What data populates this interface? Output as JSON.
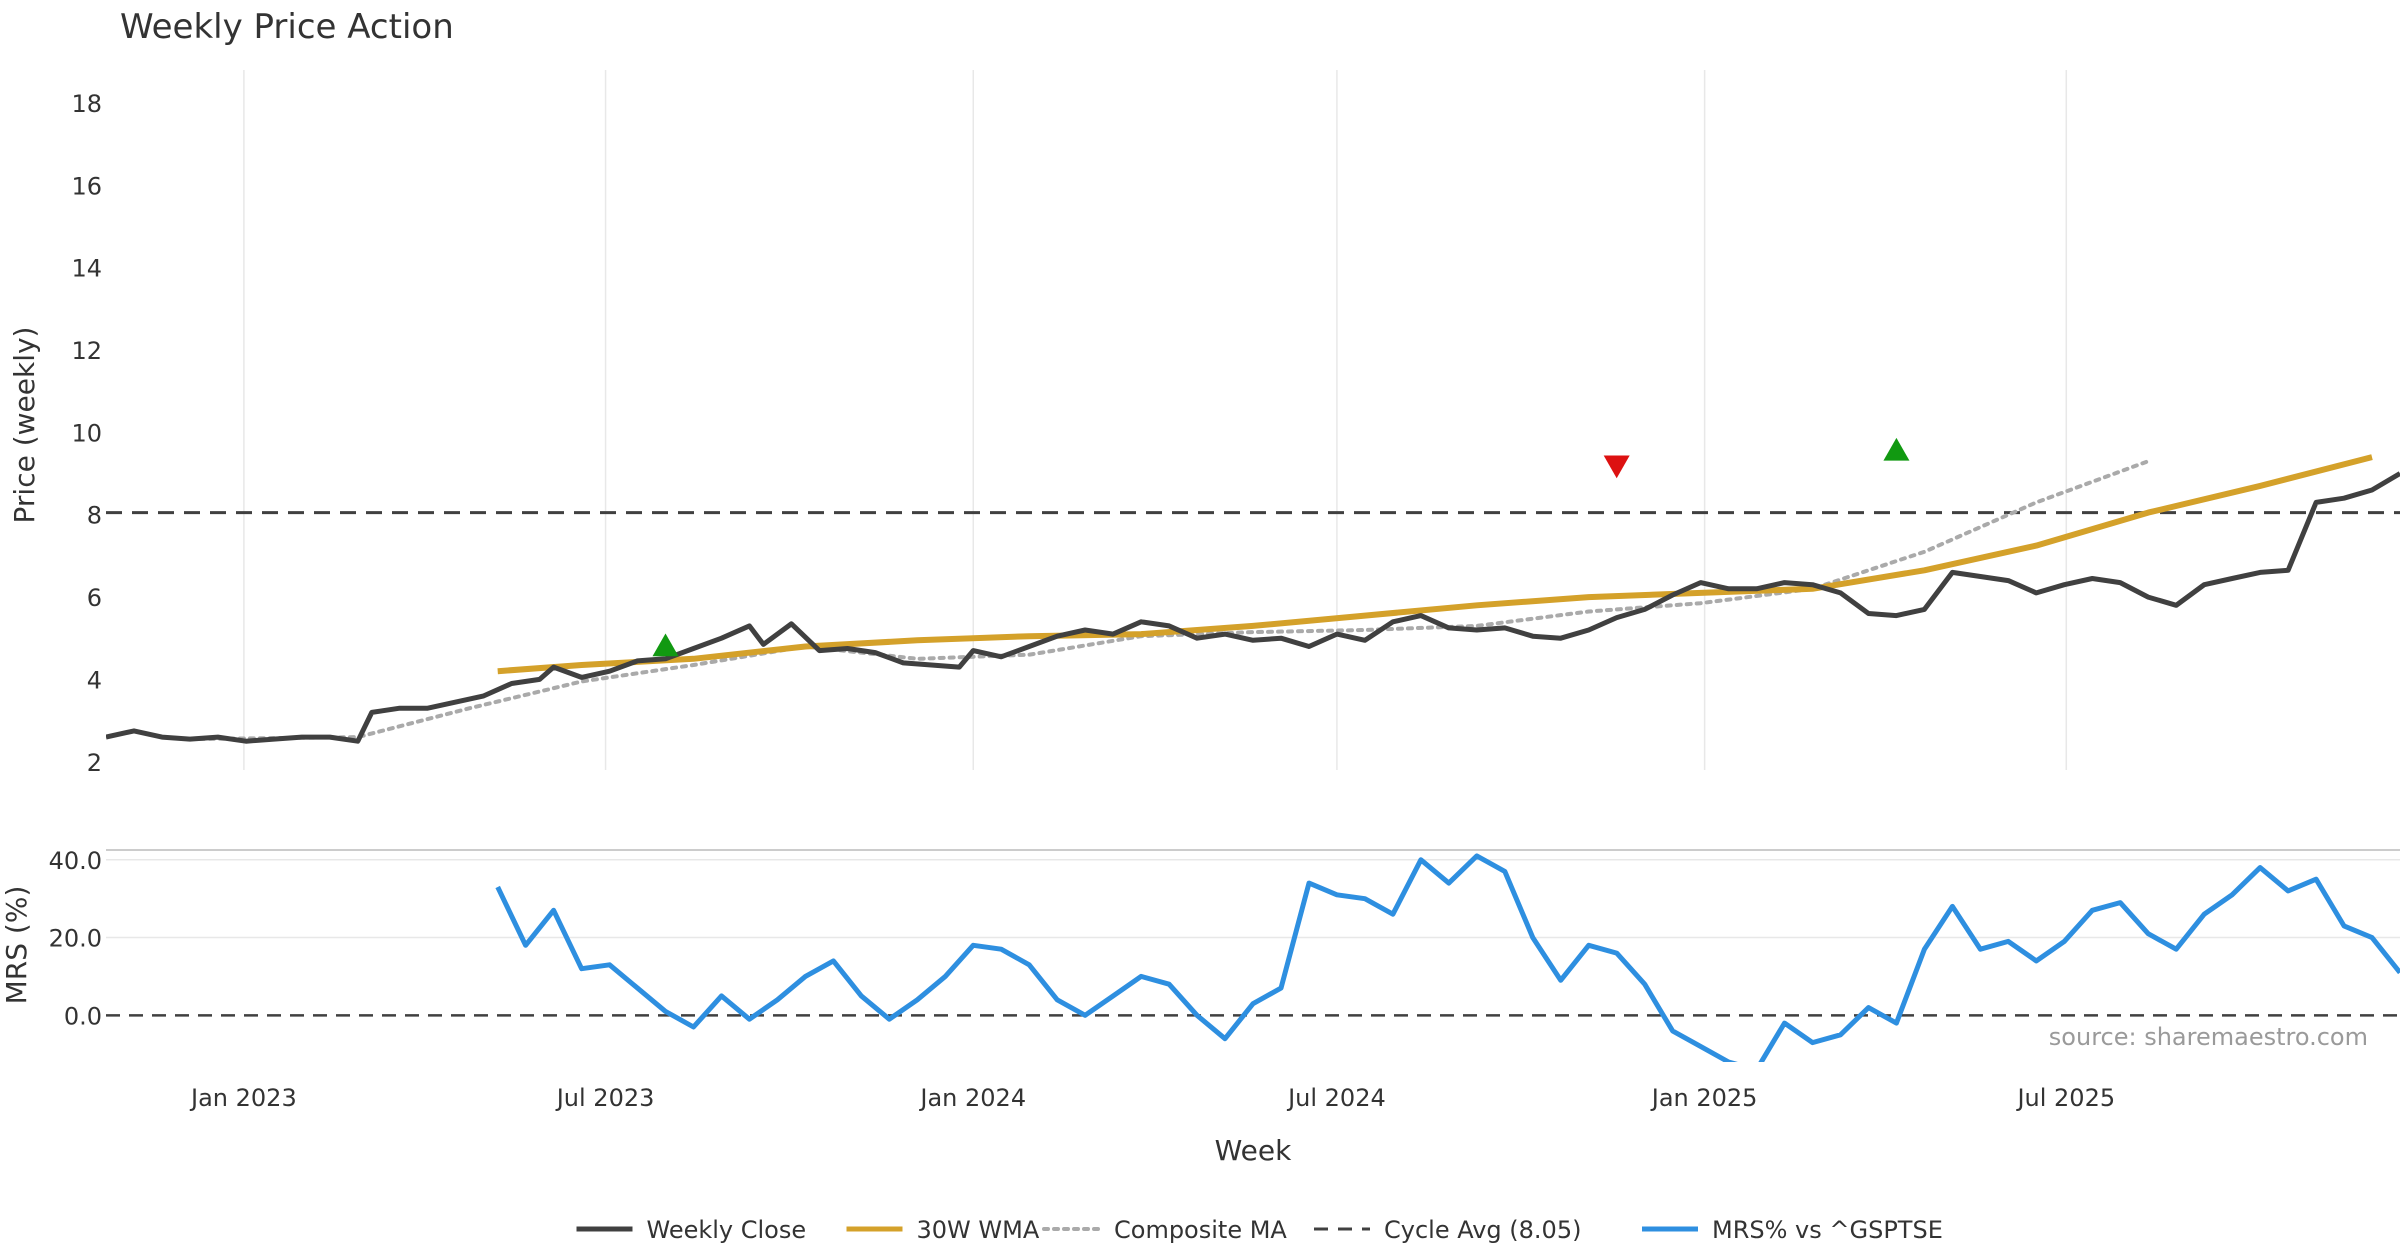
{
  "colors": {
    "close": "#404040",
    "wma": "#d4a12a",
    "composite": "#aaaaaa",
    "cycle": "#404040",
    "mrs": "#2e8fe0",
    "buy": "#119911",
    "sell": "#dd1111",
    "grid": "#e8e8e8"
  },
  "chart_data": {
    "title": "Weekly Price Action",
    "source": "source: sharemaestro.com",
    "xlabel": "Week",
    "x_range": [
      "2022-10-24",
      "2025-12-15"
    ],
    "x_ticks": [
      {
        "date": "2023-01-01",
        "label": "Jan 2023"
      },
      {
        "date": "2023-07-01",
        "label": "Jul 2023"
      },
      {
        "date": "2024-01-01",
        "label": "Jan 2024"
      },
      {
        "date": "2024-07-01",
        "label": "Jul 2024"
      },
      {
        "date": "2025-01-01",
        "label": "Jan 2025"
      },
      {
        "date": "2025-07-01",
        "label": "Jul 2025"
      }
    ],
    "price_panel": {
      "ylabel": "Price (weekly)",
      "ylim": [
        1.8,
        18.8
      ],
      "yticks": [
        2,
        4,
        6,
        8,
        10,
        12,
        14,
        16,
        18
      ],
      "cycle_avg": 8.05,
      "series": [
        {
          "name": "Weekly Close",
          "type": "line",
          "style": "solid",
          "points": [
            [
              "2022-10-24",
              2.6
            ],
            [
              "2022-11-07",
              2.75
            ],
            [
              "2022-11-21",
              2.6
            ],
            [
              "2022-12-05",
              2.55
            ],
            [
              "2022-12-19",
              2.6
            ],
            [
              "2023-01-02",
              2.5
            ],
            [
              "2023-01-16",
              2.55
            ],
            [
              "2023-01-30",
              2.6
            ],
            [
              "2023-02-13",
              2.6
            ],
            [
              "2023-02-27",
              2.5
            ],
            [
              "2023-03-06",
              3.2
            ],
            [
              "2023-03-20",
              3.3
            ],
            [
              "2023-04-03",
              3.3
            ],
            [
              "2023-04-17",
              3.45
            ],
            [
              "2023-05-01",
              3.6
            ],
            [
              "2023-05-15",
              3.9
            ],
            [
              "2023-05-29",
              4.0
            ],
            [
              "2023-06-05",
              4.3
            ],
            [
              "2023-06-19",
              4.05
            ],
            [
              "2023-07-03",
              4.2
            ],
            [
              "2023-07-17",
              4.45
            ],
            [
              "2023-07-31",
              4.5
            ],
            [
              "2023-08-14",
              4.75
            ],
            [
              "2023-08-28",
              5.0
            ],
            [
              "2023-09-11",
              5.3
            ],
            [
              "2023-09-18",
              4.85
            ],
            [
              "2023-10-02",
              5.35
            ],
            [
              "2023-10-16",
              4.7
            ],
            [
              "2023-10-30",
              4.75
            ],
            [
              "2023-11-13",
              4.65
            ],
            [
              "2023-11-27",
              4.4
            ],
            [
              "2023-12-11",
              4.35
            ],
            [
              "2023-12-25",
              4.3
            ],
            [
              "2024-01-01",
              4.7
            ],
            [
              "2024-01-15",
              4.55
            ],
            [
              "2024-01-29",
              4.8
            ],
            [
              "2024-02-12",
              5.05
            ],
            [
              "2024-02-26",
              5.2
            ],
            [
              "2024-03-11",
              5.1
            ],
            [
              "2024-03-25",
              5.4
            ],
            [
              "2024-04-08",
              5.3
            ],
            [
              "2024-04-22",
              5.0
            ],
            [
              "2024-05-06",
              5.1
            ],
            [
              "2024-05-20",
              4.95
            ],
            [
              "2024-06-03",
              5.0
            ],
            [
              "2024-06-17",
              4.8
            ],
            [
              "2024-07-01",
              5.1
            ],
            [
              "2024-07-15",
              4.95
            ],
            [
              "2024-07-29",
              5.4
            ],
            [
              "2024-08-12",
              5.55
            ],
            [
              "2024-08-26",
              5.25
            ],
            [
              "2024-09-09",
              5.2
            ],
            [
              "2024-09-23",
              5.25
            ],
            [
              "2024-10-07",
              5.05
            ],
            [
              "2024-10-21",
              5.0
            ],
            [
              "2024-11-04",
              5.2
            ],
            [
              "2024-11-18",
              5.5
            ],
            [
              "2024-12-02",
              5.7
            ],
            [
              "2024-12-16",
              6.05
            ],
            [
              "2024-12-30",
              6.35
            ],
            [
              "2025-01-13",
              6.2
            ],
            [
              "2025-01-27",
              6.2
            ],
            [
              "2025-02-10",
              6.35
            ],
            [
              "2025-02-24",
              6.3
            ],
            [
              "2025-03-10",
              6.1
            ],
            [
              "2025-03-24",
              5.6
            ],
            [
              "2025-04-07",
              5.55
            ],
            [
              "2025-04-21",
              5.7
            ],
            [
              "2025-05-05",
              6.6
            ],
            [
              "2025-05-19",
              6.5
            ],
            [
              "2025-06-02",
              6.4
            ],
            [
              "2025-06-16",
              6.1
            ],
            [
              "2025-06-30",
              6.3
            ],
            [
              "2025-07-14",
              6.45
            ],
            [
              "2025-07-28",
              6.35
            ],
            [
              "2025-08-11",
              6.0
            ],
            [
              "2025-08-25",
              5.8
            ],
            [
              "2025-09-08",
              6.3
            ],
            [
              "2025-09-22",
              6.45
            ],
            [
              "2025-10-06",
              6.6
            ],
            [
              "2025-10-20",
              6.65
            ],
            [
              "2025-11-03",
              8.3
            ],
            [
              "2025-11-17",
              8.4
            ],
            [
              "2025-12-01",
              8.6
            ],
            [
              "2025-12-15",
              9.0
            ]
          ]
        },
        {
          "name": "30W WMA",
          "type": "line",
          "style": "solid",
          "points": [
            [
              "2023-05-08",
              4.2
            ],
            [
              "2023-06-19",
              4.35
            ],
            [
              "2023-08-14",
              4.5
            ],
            [
              "2023-10-09",
              4.8
            ],
            [
              "2023-12-04",
              4.95
            ],
            [
              "2024-01-29",
              5.05
            ],
            [
              "2024-03-25",
              5.1
            ],
            [
              "2024-05-20",
              5.3
            ],
            [
              "2024-07-15",
              5.55
            ],
            [
              "2024-09-09",
              5.8
            ],
            [
              "2024-11-04",
              6.0
            ],
            [
              "2024-12-30",
              6.1
            ],
            [
              "2025-02-24",
              6.2
            ],
            [
              "2025-04-21",
              6.65
            ],
            [
              "2025-06-16",
              7.25
            ],
            [
              "2025-08-11",
              8.05
            ],
            [
              "2025-10-06",
              8.7
            ],
            [
              "2025-12-01",
              9.4
            ]
          ]
        },
        {
          "name": "Composite MA",
          "type": "line",
          "style": "dotted",
          "points": [
            [
              "2022-12-05",
              2.55
            ],
            [
              "2023-02-27",
              2.6
            ],
            [
              "2023-04-24",
              3.3
            ],
            [
              "2023-06-19",
              3.95
            ],
            [
              "2023-08-14",
              4.35
            ],
            [
              "2023-10-09",
              4.8
            ],
            [
              "2023-12-04",
              4.5
            ],
            [
              "2024-01-29",
              4.6
            ],
            [
              "2024-03-25",
              5.05
            ],
            [
              "2024-05-20",
              5.15
            ],
            [
              "2024-07-15",
              5.2
            ],
            [
              "2024-09-09",
              5.3
            ],
            [
              "2024-11-04",
              5.65
            ],
            [
              "2024-12-30",
              5.85
            ],
            [
              "2025-02-24",
              6.2
            ],
            [
              "2025-04-21",
              7.1
            ],
            [
              "2025-06-16",
              8.3
            ],
            [
              "2025-08-11",
              9.3
            ]
          ]
        },
        {
          "name": "Cycle Avg (8.05)",
          "type": "hline",
          "style": "dashed",
          "value": 8.05
        }
      ],
      "markers": [
        {
          "kind": "buy",
          "date": "2023-07-31",
          "y": 4.8
        },
        {
          "kind": "sell",
          "date": "2024-11-18",
          "y": 9.2
        },
        {
          "kind": "buy",
          "date": "2025-04-07",
          "y": 9.55
        }
      ]
    },
    "mrs_panel": {
      "ylabel": "MRS (%)",
      "ylim": [
        -12,
        42
      ],
      "yticks": [
        {
          "value": 0,
          "label": "0.0"
        },
        {
          "value": 20,
          "label": "20.0"
        },
        {
          "value": 40,
          "label": "40.0"
        }
      ],
      "zero_line": 0,
      "series": [
        {
          "name": "MRS% vs ^GSPTSE",
          "type": "line",
          "style": "solid",
          "points": [
            [
              "2023-05-08",
              33
            ],
            [
              "2023-05-22",
              18
            ],
            [
              "2023-06-05",
              27
            ],
            [
              "2023-06-19",
              12
            ],
            [
              "2023-07-03",
              13
            ],
            [
              "2023-07-17",
              7
            ],
            [
              "2023-07-31",
              1
            ],
            [
              "2023-08-14",
              -3
            ],
            [
              "2023-08-28",
              5
            ],
            [
              "2023-09-11",
              -1
            ],
            [
              "2023-09-25",
              4
            ],
            [
              "2023-10-09",
              10
            ],
            [
              "2023-10-23",
              14
            ],
            [
              "2023-11-06",
              5
            ],
            [
              "2023-11-20",
              -1
            ],
            [
              "2023-12-04",
              4
            ],
            [
              "2023-12-18",
              10
            ],
            [
              "2024-01-01",
              18
            ],
            [
              "2024-01-15",
              17
            ],
            [
              "2024-01-29",
              13
            ],
            [
              "2024-02-12",
              4
            ],
            [
              "2024-02-26",
              0
            ],
            [
              "2024-03-11",
              5
            ],
            [
              "2024-03-25",
              10
            ],
            [
              "2024-04-08",
              8
            ],
            [
              "2024-04-22",
              0
            ],
            [
              "2024-05-06",
              -6
            ],
            [
              "2024-05-20",
              3
            ],
            [
              "2024-06-03",
              7
            ],
            [
              "2024-06-17",
              34
            ],
            [
              "2024-07-01",
              31
            ],
            [
              "2024-07-15",
              30
            ],
            [
              "2024-07-29",
              26
            ],
            [
              "2024-08-12",
              40
            ],
            [
              "2024-08-26",
              34
            ],
            [
              "2024-09-09",
              41
            ],
            [
              "2024-09-23",
              37
            ],
            [
              "2024-10-07",
              20
            ],
            [
              "2024-10-21",
              9
            ],
            [
              "2024-11-04",
              18
            ],
            [
              "2024-11-18",
              16
            ],
            [
              "2024-12-02",
              8
            ],
            [
              "2024-12-16",
              -4
            ],
            [
              "2024-12-30",
              -8
            ],
            [
              "2025-01-13",
              -12
            ],
            [
              "2025-01-27",
              -14
            ],
            [
              "2025-02-10",
              -2
            ],
            [
              "2025-02-24",
              -7
            ],
            [
              "2025-03-10",
              -5
            ],
            [
              "2025-03-24",
              2
            ],
            [
              "2025-04-07",
              -2
            ],
            [
              "2025-04-21",
              17
            ],
            [
              "2025-05-05",
              28
            ],
            [
              "2025-05-19",
              17
            ],
            [
              "2025-06-02",
              19
            ],
            [
              "2025-06-16",
              14
            ],
            [
              "2025-06-30",
              19
            ],
            [
              "2025-07-14",
              27
            ],
            [
              "2025-07-28",
              29
            ],
            [
              "2025-08-11",
              21
            ],
            [
              "2025-08-25",
              17
            ],
            [
              "2025-09-08",
              26
            ],
            [
              "2025-09-22",
              31
            ],
            [
              "2025-10-06",
              38
            ],
            [
              "2025-10-20",
              32
            ],
            [
              "2025-11-03",
              35
            ],
            [
              "2025-11-17",
              23
            ],
            [
              "2025-12-01",
              20
            ],
            [
              "2025-12-15",
              11
            ]
          ]
        }
      ]
    },
    "legend": {
      "position": "bottom-center",
      "entries": [
        {
          "label": "Weekly Close",
          "series": "close",
          "style": "solid"
        },
        {
          "label": "30W WMA",
          "series": "wma",
          "style": "solid"
        },
        {
          "label": "Composite MA",
          "series": "composite",
          "style": "dotted"
        },
        {
          "label": "Cycle Avg (8.05)",
          "series": "cycle",
          "style": "dashed"
        },
        {
          "label": "MRS% vs ^GSPTSE",
          "series": "mrs",
          "style": "solid"
        }
      ]
    }
  }
}
